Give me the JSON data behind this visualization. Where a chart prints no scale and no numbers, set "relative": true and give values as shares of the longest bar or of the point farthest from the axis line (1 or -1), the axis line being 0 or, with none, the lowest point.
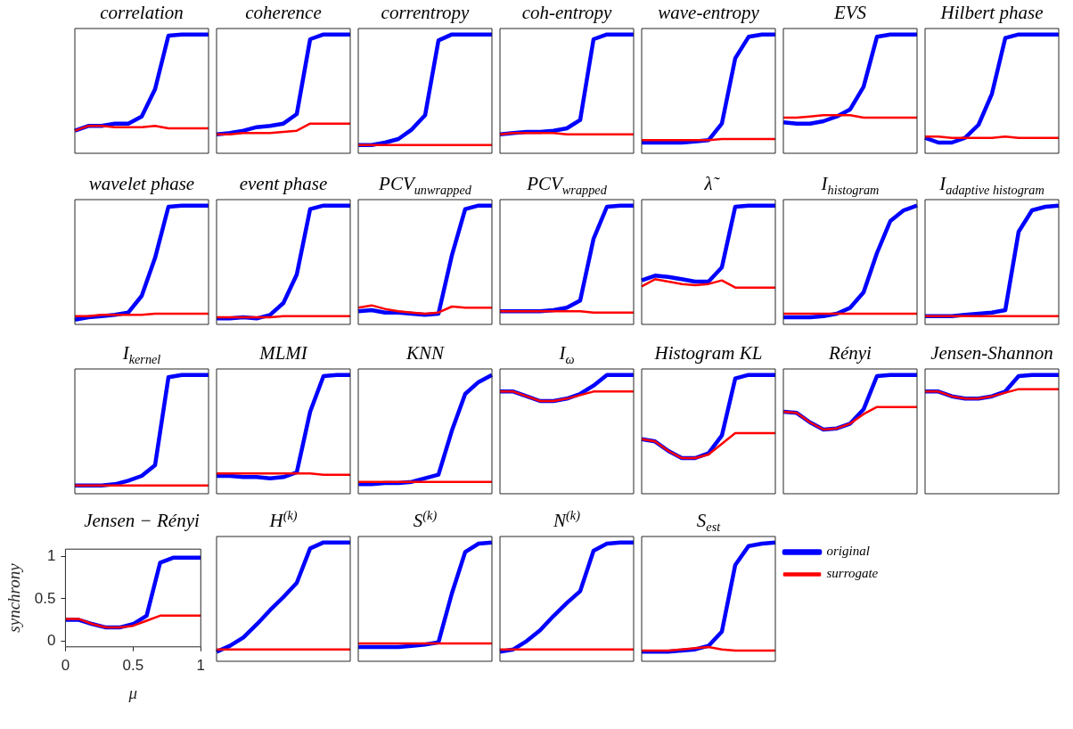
{
  "chart_data": [
    {
      "type": "line",
      "title": "correlation",
      "relative": true,
      "categories": [
        null,
        null,
        null,
        null,
        null,
        null,
        null,
        null,
        null,
        null,
        null
      ],
      "series": [
        {
          "color": "#0000ff",
          "values": [
            0.19,
            0.23,
            0.23,
            0.25,
            0.25,
            0.31,
            0.54,
            0.99,
            1,
            1,
            1
          ]
        },
        {
          "color": "#ff0000",
          "values": [
            0.19,
            0.23,
            0.23,
            0.22,
            0.22,
            0.22,
            0.23,
            0.21,
            0.21,
            0.21,
            0.21
          ]
        }
      ]
    },
    {
      "type": "line",
      "title": "coherence",
      "relative": true,
      "categories": [
        null,
        null,
        null,
        null,
        null,
        null,
        null,
        null,
        null,
        null,
        null
      ],
      "series": [
        {
          "color": "#0000ff",
          "values": [
            0.16,
            0.17,
            0.19,
            0.22,
            0.23,
            0.25,
            0.33,
            0.96,
            1,
            1,
            1
          ]
        },
        {
          "color": "#ff0000",
          "values": [
            0.16,
            0.16,
            0.17,
            0.17,
            0.17,
            0.18,
            0.19,
            0.25,
            0.25,
            0.25,
            0.25
          ]
        }
      ]
    },
    {
      "type": "line",
      "title": "correntropy",
      "relative": true,
      "categories": [
        null,
        null,
        null,
        null,
        null,
        null,
        null,
        null,
        null,
        null,
        null
      ],
      "series": [
        {
          "color": "#0000ff",
          "values": [
            0.07,
            0.07,
            0.09,
            0.12,
            0.2,
            0.32,
            0.95,
            1,
            1,
            1,
            1
          ]
        },
        {
          "color": "#ff0000",
          "values": [
            0.07,
            0.07,
            0.07,
            0.07,
            0.07,
            0.07,
            0.07,
            0.07,
            0.07,
            0.07,
            0.07
          ]
        }
      ]
    },
    {
      "type": "line",
      "title": "coh-entropy",
      "relative": true,
      "categories": [
        null,
        null,
        null,
        null,
        null,
        null,
        null,
        null,
        null,
        null,
        null
      ],
      "series": [
        {
          "color": "#0000ff",
          "values": [
            0.16,
            0.17,
            0.18,
            0.18,
            0.19,
            0.21,
            0.28,
            0.96,
            1,
            1,
            1
          ]
        },
        {
          "color": "#ff0000",
          "values": [
            0.16,
            0.17,
            0.17,
            0.17,
            0.17,
            0.16,
            0.16,
            0.16,
            0.16,
            0.16,
            0.16
          ]
        }
      ]
    },
    {
      "type": "line",
      "title": "wave-entropy",
      "relative": true,
      "categories": [
        null,
        null,
        null,
        null,
        null,
        null,
        null,
        null,
        null,
        null,
        null
      ],
      "series": [
        {
          "color": "#0000ff",
          "values": [
            0.09,
            0.09,
            0.09,
            0.09,
            0.1,
            0.11,
            0.25,
            0.8,
            0.98,
            1,
            1
          ]
        },
        {
          "color": "#ff0000",
          "values": [
            0.11,
            0.11,
            0.11,
            0.11,
            0.11,
            0.11,
            0.12,
            0.12,
            0.12,
            0.12,
            0.12
          ]
        }
      ]
    },
    {
      "type": "line",
      "title": "EVS",
      "relative": true,
      "categories": [
        null,
        null,
        null,
        null,
        null,
        null,
        null,
        null,
        null,
        null,
        null
      ],
      "series": [
        {
          "color": "#0000ff",
          "values": [
            0.26,
            0.25,
            0.25,
            0.27,
            0.31,
            0.37,
            0.56,
            0.98,
            1,
            1,
            1
          ]
        },
        {
          "color": "#ff0000",
          "values": [
            0.3,
            0.3,
            0.31,
            0.32,
            0.32,
            0.32,
            0.3,
            0.3,
            0.3,
            0.3,
            0.3
          ]
        }
      ]
    },
    {
      "type": "line",
      "title": "Hilbert phase",
      "relative": true,
      "categories": [
        null,
        null,
        null,
        null,
        null,
        null,
        null,
        null,
        null,
        null,
        null
      ],
      "series": [
        {
          "color": "#0000ff",
          "values": [
            0.13,
            0.09,
            0.09,
            0.13,
            0.24,
            0.5,
            0.97,
            1,
            1,
            1,
            1
          ]
        },
        {
          "color": "#ff0000",
          "values": [
            0.14,
            0.14,
            0.13,
            0.13,
            0.13,
            0.13,
            0.14,
            0.13,
            0.13,
            0.13,
            0.13
          ]
        }
      ]
    },
    {
      "type": "line",
      "title": "wavelet phase",
      "relative": true,
      "categories": [
        null,
        null,
        null,
        null,
        null,
        null,
        null,
        null,
        null,
        null,
        null
      ],
      "series": [
        {
          "color": "#0000ff",
          "values": [
            0.04,
            0.06,
            0.07,
            0.08,
            0.1,
            0.24,
            0.56,
            0.99,
            1,
            1,
            1
          ]
        },
        {
          "color": "#ff0000",
          "values": [
            0.07,
            0.07,
            0.08,
            0.08,
            0.08,
            0.08,
            0.09,
            0.09,
            0.09,
            0.09,
            0.09
          ]
        }
      ]
    },
    {
      "type": "line",
      "title": "event phase",
      "relative": true,
      "categories": [
        null,
        null,
        null,
        null,
        null,
        null,
        null,
        null,
        null,
        null,
        null
      ],
      "series": [
        {
          "color": "#0000ff",
          "values": [
            0.05,
            0.05,
            0.06,
            0.05,
            0.08,
            0.18,
            0.42,
            0.97,
            1,
            1,
            1
          ]
        },
        {
          "color": "#ff0000",
          "values": [
            0.06,
            0.06,
            0.06,
            0.06,
            0.06,
            0.07,
            0.07,
            0.07,
            0.07,
            0.07,
            0.07
          ]
        }
      ]
    },
    {
      "type": "line",
      "title": "PCV$_{unwrapped}$",
      "relative": true,
      "categories": [
        null,
        null,
        null,
        null,
        null,
        null,
        null,
        null,
        null,
        null,
        null
      ],
      "series": [
        {
          "color": "#0000ff",
          "values": [
            0.11,
            0.12,
            0.1,
            0.1,
            0.09,
            0.08,
            0.09,
            0.58,
            0.97,
            1,
            1
          ]
        },
        {
          "color": "#ff0000",
          "values": [
            0.14,
            0.16,
            0.13,
            0.11,
            0.1,
            0.09,
            0.1,
            0.15,
            0.14,
            0.14,
            0.14
          ]
        }
      ]
    },
    {
      "type": "line",
      "title": "PCV$_{wrapped}$",
      "relative": true,
      "categories": [
        null,
        null,
        null,
        null,
        null,
        null,
        null,
        null,
        null,
        null,
        null
      ],
      "series": [
        {
          "color": "#0000ff",
          "values": [
            0.11,
            0.11,
            0.11,
            0.11,
            0.12,
            0.14,
            0.2,
            0.72,
            0.99,
            1,
            1
          ]
        },
        {
          "color": "#ff0000",
          "values": [
            0.11,
            0.11,
            0.11,
            0.11,
            0.11,
            0.11,
            0.11,
            0.1,
            0.1,
            0.1,
            0.1
          ]
        }
      ]
    },
    {
      "type": "line",
      "title": "λ̃",
      "relative": true,
      "categories": [
        null,
        null,
        null,
        null,
        null,
        null,
        null,
        null,
        null,
        null,
        null
      ],
      "series": [
        {
          "color": "#0000ff",
          "values": [
            0.37,
            0.41,
            0.4,
            0.38,
            0.36,
            0.36,
            0.48,
            0.99,
            1,
            1,
            1
          ]
        },
        {
          "color": "#ff0000",
          "values": [
            0.32,
            0.38,
            0.36,
            0.34,
            0.33,
            0.34,
            0.37,
            0.31,
            0.31,
            0.31,
            0.31
          ]
        }
      ]
    },
    {
      "type": "line",
      "title": "I$_{histogram}$",
      "relative": true,
      "categories": [
        null,
        null,
        null,
        null,
        null,
        null,
        null,
        null,
        null,
        null,
        null
      ],
      "series": [
        {
          "color": "#0000ff",
          "values": [
            0.06,
            0.06,
            0.06,
            0.07,
            0.09,
            0.14,
            0.27,
            0.6,
            0.87,
            0.96,
            1
          ]
        },
        {
          "color": "#ff0000",
          "values": [
            0.09,
            0.09,
            0.09,
            0.09,
            0.09,
            0.09,
            0.09,
            0.09,
            0.09,
            0.09,
            0.09
          ]
        }
      ]
    },
    {
      "type": "line",
      "title": "I$_{adaptive histogram}$",
      "relative": true,
      "categories": [
        null,
        null,
        null,
        null,
        null,
        null,
        null,
        null,
        null,
        null,
        null
      ],
      "series": [
        {
          "color": "#0000ff",
          "values": [
            0.07,
            0.07,
            0.07,
            0.08,
            0.09,
            0.1,
            0.12,
            0.78,
            0.96,
            0.99,
            1
          ]
        },
        {
          "color": "#ff0000",
          "values": [
            0.07,
            0.07,
            0.07,
            0.07,
            0.07,
            0.07,
            0.07,
            0.07,
            0.07,
            0.07,
            0.07
          ]
        }
      ]
    },
    {
      "type": "line",
      "title": "I$_{kernel}$",
      "relative": true,
      "categories": [
        null,
        null,
        null,
        null,
        null,
        null,
        null,
        null,
        null,
        null,
        null
      ],
      "series": [
        {
          "color": "#0000ff",
          "values": [
            0.07,
            0.07,
            0.07,
            0.08,
            0.11,
            0.15,
            0.24,
            0.98,
            1,
            1,
            1
          ]
        },
        {
          "color": "#ff0000",
          "values": [
            0.07,
            0.07,
            0.07,
            0.07,
            0.07,
            0.07,
            0.07,
            0.07,
            0.07,
            0.07,
            0.07
          ]
        }
      ]
    },
    {
      "type": "line",
      "title": "MLMI",
      "relative": true,
      "categories": [
        null,
        null,
        null,
        null,
        null,
        null,
        null,
        null,
        null,
        null,
        null
      ],
      "series": [
        {
          "color": "#0000ff",
          "values": [
            0.15,
            0.15,
            0.14,
            0.14,
            0.13,
            0.14,
            0.18,
            0.69,
            0.99,
            1,
            1
          ]
        },
        {
          "color": "#ff0000",
          "values": [
            0.17,
            0.17,
            0.17,
            0.17,
            0.17,
            0.17,
            0.17,
            0.17,
            0.16,
            0.16,
            0.16
          ]
        }
      ]
    },
    {
      "type": "line",
      "title": "KNN",
      "relative": true,
      "categories": [
        null,
        null,
        null,
        null,
        null,
        null,
        null,
        null,
        null,
        null,
        null
      ],
      "series": [
        {
          "color": "#0000ff",
          "values": [
            0.08,
            0.08,
            0.09,
            0.09,
            0.1,
            0.13,
            0.16,
            0.53,
            0.84,
            0.94,
            1
          ]
        },
        {
          "color": "#ff0000",
          "values": [
            0.1,
            0.1,
            0.1,
            0.1,
            0.1,
            0.1,
            0.1,
            0.1,
            0.1,
            0.1,
            0.1
          ]
        }
      ]
    },
    {
      "type": "line",
      "title": "I$_{ω}$",
      "relative": true,
      "categories": [
        null,
        null,
        null,
        null,
        null,
        null,
        null,
        null,
        null,
        null,
        null
      ],
      "series": [
        {
          "color": "#0000ff",
          "values": [
            0.86,
            0.86,
            0.82,
            0.78,
            0.78,
            0.8,
            0.84,
            0.91,
            1,
            1,
            1
          ]
        },
        {
          "color": "#ff0000",
          "values": [
            0.86,
            0.86,
            0.82,
            0.78,
            0.78,
            0.8,
            0.83,
            0.86,
            0.86,
            0.86,
            0.86
          ]
        }
      ]
    },
    {
      "type": "line",
      "title": "Histogram KL",
      "relative": true,
      "categories": [
        null,
        null,
        null,
        null,
        null,
        null,
        null,
        null,
        null,
        null,
        null
      ],
      "series": [
        {
          "color": "#0000ff",
          "values": [
            0.46,
            0.44,
            0.36,
            0.3,
            0.3,
            0.34,
            0.49,
            0.97,
            1,
            1,
            1
          ]
        },
        {
          "color": "#ff0000",
          "values": [
            0.46,
            0.44,
            0.36,
            0.3,
            0.3,
            0.33,
            0.42,
            0.51,
            0.51,
            0.51,
            0.51
          ]
        }
      ]
    },
    {
      "type": "line",
      "title": "Rényi",
      "relative": true,
      "categories": [
        null,
        null,
        null,
        null,
        null,
        null,
        null,
        null,
        null,
        null,
        null
      ],
      "series": [
        {
          "color": "#0000ff",
          "values": [
            0.69,
            0.68,
            0.6,
            0.54,
            0.55,
            0.59,
            0.71,
            0.99,
            1,
            1,
            1
          ]
        },
        {
          "color": "#ff0000",
          "values": [
            0.69,
            0.68,
            0.6,
            0.54,
            0.55,
            0.59,
            0.67,
            0.73,
            0.73,
            0.73,
            0.73
          ]
        }
      ]
    },
    {
      "type": "line",
      "title": "Jensen-Shannon",
      "relative": true,
      "categories": [
        null,
        null,
        null,
        null,
        null,
        null,
        null,
        null,
        null,
        null,
        null
      ],
      "series": [
        {
          "color": "#0000ff",
          "values": [
            0.86,
            0.86,
            0.82,
            0.8,
            0.8,
            0.82,
            0.86,
            0.99,
            1,
            1,
            1
          ]
        },
        {
          "color": "#ff0000",
          "values": [
            0.86,
            0.86,
            0.82,
            0.8,
            0.8,
            0.82,
            0.85,
            0.88,
            0.88,
            0.88,
            0.88
          ]
        }
      ]
    },
    {
      "type": "line",
      "title": "Jensen − Rényi",
      "xlabel": "μ",
      "ylabel": "synchrony",
      "x": [
        0,
        0.1,
        0.2,
        0.3,
        0.4,
        0.5,
        0.6,
        0.7,
        0.8,
        0.9,
        1
      ],
      "xlim": [
        0,
        1
      ],
      "ylim": [
        -0.07,
        1.09
      ],
      "xticks": [
        0,
        0.5,
        1
      ],
      "yticks": [
        0,
        0.5,
        1
      ],
      "series": [
        {
          "color": "#0000ff",
          "values": [
            0.25,
            0.25,
            0.2,
            0.16,
            0.16,
            0.2,
            0.3,
            0.93,
            0.99,
            0.99,
            0.99
          ]
        },
        {
          "color": "#ff0000",
          "values": [
            0.26,
            0.26,
            0.2,
            0.16,
            0.16,
            0.18,
            0.24,
            0.3,
            0.3,
            0.3,
            0.3
          ]
        }
      ]
    },
    {
      "type": "line",
      "title": "H$^{(k)}$",
      "relative": true,
      "categories": [
        null,
        null,
        null,
        null,
        null,
        null,
        null,
        null,
        null,
        null,
        null
      ],
      "series": [
        {
          "color": "#0000ff",
          "values": [
            0.08,
            0.13,
            0.2,
            0.31,
            0.43,
            0.54,
            0.66,
            0.95,
            1,
            1,
            1
          ]
        },
        {
          "color": "#ff0000",
          "values": [
            0.1,
            0.1,
            0.1,
            0.1,
            0.1,
            0.1,
            0.1,
            0.1,
            0.1,
            0.1,
            0.1
          ]
        }
      ]
    },
    {
      "type": "line",
      "title": "S$^{(k)}$",
      "relative": true,
      "categories": [
        null,
        null,
        null,
        null,
        null,
        null,
        null,
        null,
        null,
        null,
        null
      ],
      "series": [
        {
          "color": "#0000ff",
          "values": [
            0.12,
            0.12,
            0.12,
            0.12,
            0.13,
            0.14,
            0.16,
            0.57,
            0.92,
            0.99,
            1
          ]
        },
        {
          "color": "#ff0000",
          "values": [
            0.15,
            0.15,
            0.15,
            0.15,
            0.15,
            0.15,
            0.15,
            0.15,
            0.15,
            0.15,
            0.15
          ]
        }
      ]
    },
    {
      "type": "line",
      "title": "N$^{(k)}$",
      "relative": true,
      "categories": [
        null,
        null,
        null,
        null,
        null,
        null,
        null,
        null,
        null,
        null,
        null
      ],
      "series": [
        {
          "color": "#0000ff",
          "values": [
            0.08,
            0.1,
            0.17,
            0.26,
            0.38,
            0.49,
            0.59,
            0.93,
            0.99,
            1,
            1
          ]
        },
        {
          "color": "#ff0000",
          "values": [
            0.1,
            0.1,
            0.1,
            0.1,
            0.1,
            0.1,
            0.1,
            0.1,
            0.1,
            0.1,
            0.1
          ]
        }
      ]
    },
    {
      "type": "line",
      "title": "S$_{est}$",
      "relative": true,
      "legend": "right",
      "categories": [
        null,
        null,
        null,
        null,
        null,
        null,
        null,
        null,
        null,
        null,
        null
      ],
      "series": [
        {
          "name": "original",
          "color": "#0000ff",
          "values": [
            0.08,
            0.08,
            0.08,
            0.09,
            0.1,
            0.13,
            0.25,
            0.81,
            0.97,
            0.99,
            1
          ]
        },
        {
          "name": "surrogate",
          "color": "#ff0000",
          "values": [
            0.09,
            0.09,
            0.09,
            0.1,
            0.11,
            0.12,
            0.1,
            0.09,
            0.09,
            0.09,
            0.09
          ]
        }
      ]
    }
  ]
}
